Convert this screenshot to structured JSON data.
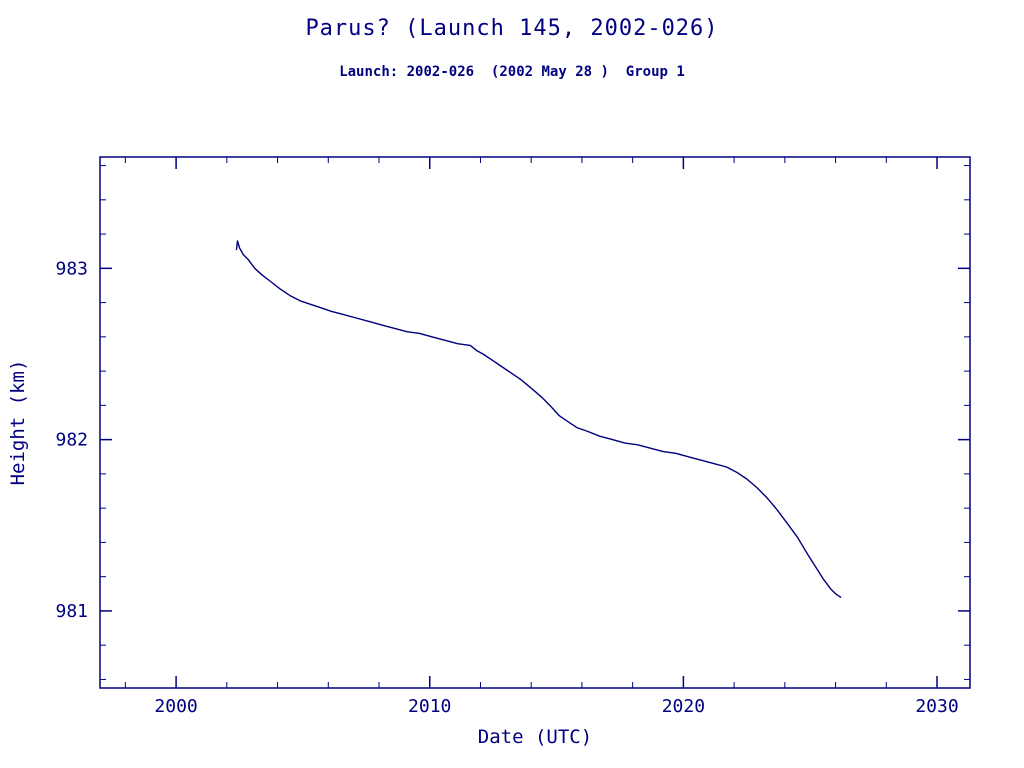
{
  "header": {
    "title": "Parus? (Launch 145, 2002-026)",
    "subtitle": "Launch: 2002-026  (2002 May 28 )  Group 1"
  },
  "colors": {
    "ink": "#000080",
    "background": "#ffffff"
  },
  "chart_data": {
    "type": "line",
    "title": "Parus? (Launch 145, 2002-026)",
    "subtitle": "Launch: 2002-026  (2002 May 28 )  Group 1",
    "xlabel": "Date (UTC)",
    "ylabel": "Height (km)",
    "xlim": [
      1997.0,
      2031.3
    ],
    "ylim": [
      980.55,
      983.65
    ],
    "xticks": [
      2000,
      2010,
      2020,
      2030
    ],
    "yticks": [
      981,
      982,
      983
    ],
    "x_minor_step": 2,
    "y_minor_step": 0.2,
    "grid": false,
    "legend": "none",
    "line_color": "#000080",
    "series": [
      {
        "name": "height_km",
        "points": [
          [
            2002.38,
            983.11
          ],
          [
            2002.42,
            983.16
          ],
          [
            2002.5,
            983.12
          ],
          [
            2002.65,
            983.08
          ],
          [
            2002.85,
            983.05
          ],
          [
            2003.1,
            983.0
          ],
          [
            2003.4,
            982.96
          ],
          [
            2003.75,
            982.92
          ],
          [
            2004.1,
            982.88
          ],
          [
            2004.5,
            982.84
          ],
          [
            2004.9,
            982.81
          ],
          [
            2005.3,
            982.79
          ],
          [
            2005.7,
            982.77
          ],
          [
            2006.1,
            982.75
          ],
          [
            2006.6,
            982.73
          ],
          [
            2007.1,
            982.71
          ],
          [
            2007.6,
            982.69
          ],
          [
            2008.1,
            982.67
          ],
          [
            2008.6,
            982.65
          ],
          [
            2009.1,
            982.63
          ],
          [
            2009.6,
            982.62
          ],
          [
            2010.1,
            982.6
          ],
          [
            2010.6,
            982.58
          ],
          [
            2011.1,
            982.56
          ],
          [
            2011.6,
            982.55
          ],
          [
            2011.85,
            982.52
          ],
          [
            2012.1,
            982.5
          ],
          [
            2012.4,
            982.47
          ],
          [
            2012.8,
            982.43
          ],
          [
            2013.2,
            982.39
          ],
          [
            2013.6,
            982.35
          ],
          [
            2014.0,
            982.3
          ],
          [
            2014.4,
            982.25
          ],
          [
            2014.8,
            982.19
          ],
          [
            2015.1,
            982.14
          ],
          [
            2015.4,
            982.11
          ],
          [
            2015.8,
            982.07
          ],
          [
            2016.2,
            982.05
          ],
          [
            2016.7,
            982.02
          ],
          [
            2017.2,
            982.0
          ],
          [
            2017.7,
            981.98
          ],
          [
            2018.2,
            981.97
          ],
          [
            2018.7,
            981.95
          ],
          [
            2019.2,
            981.93
          ],
          [
            2019.7,
            981.92
          ],
          [
            2020.2,
            981.9
          ],
          [
            2020.7,
            981.88
          ],
          [
            2021.2,
            981.86
          ],
          [
            2021.7,
            981.84
          ],
          [
            2022.1,
            981.81
          ],
          [
            2022.5,
            981.77
          ],
          [
            2022.9,
            981.72
          ],
          [
            2023.3,
            981.66
          ],
          [
            2023.7,
            981.59
          ],
          [
            2024.1,
            981.51
          ],
          [
            2024.5,
            981.43
          ],
          [
            2024.9,
            981.33
          ],
          [
            2025.2,
            981.26
          ],
          [
            2025.5,
            981.19
          ],
          [
            2025.8,
            981.13
          ],
          [
            2026.0,
            981.1
          ],
          [
            2026.2,
            981.08
          ]
        ]
      }
    ]
  }
}
